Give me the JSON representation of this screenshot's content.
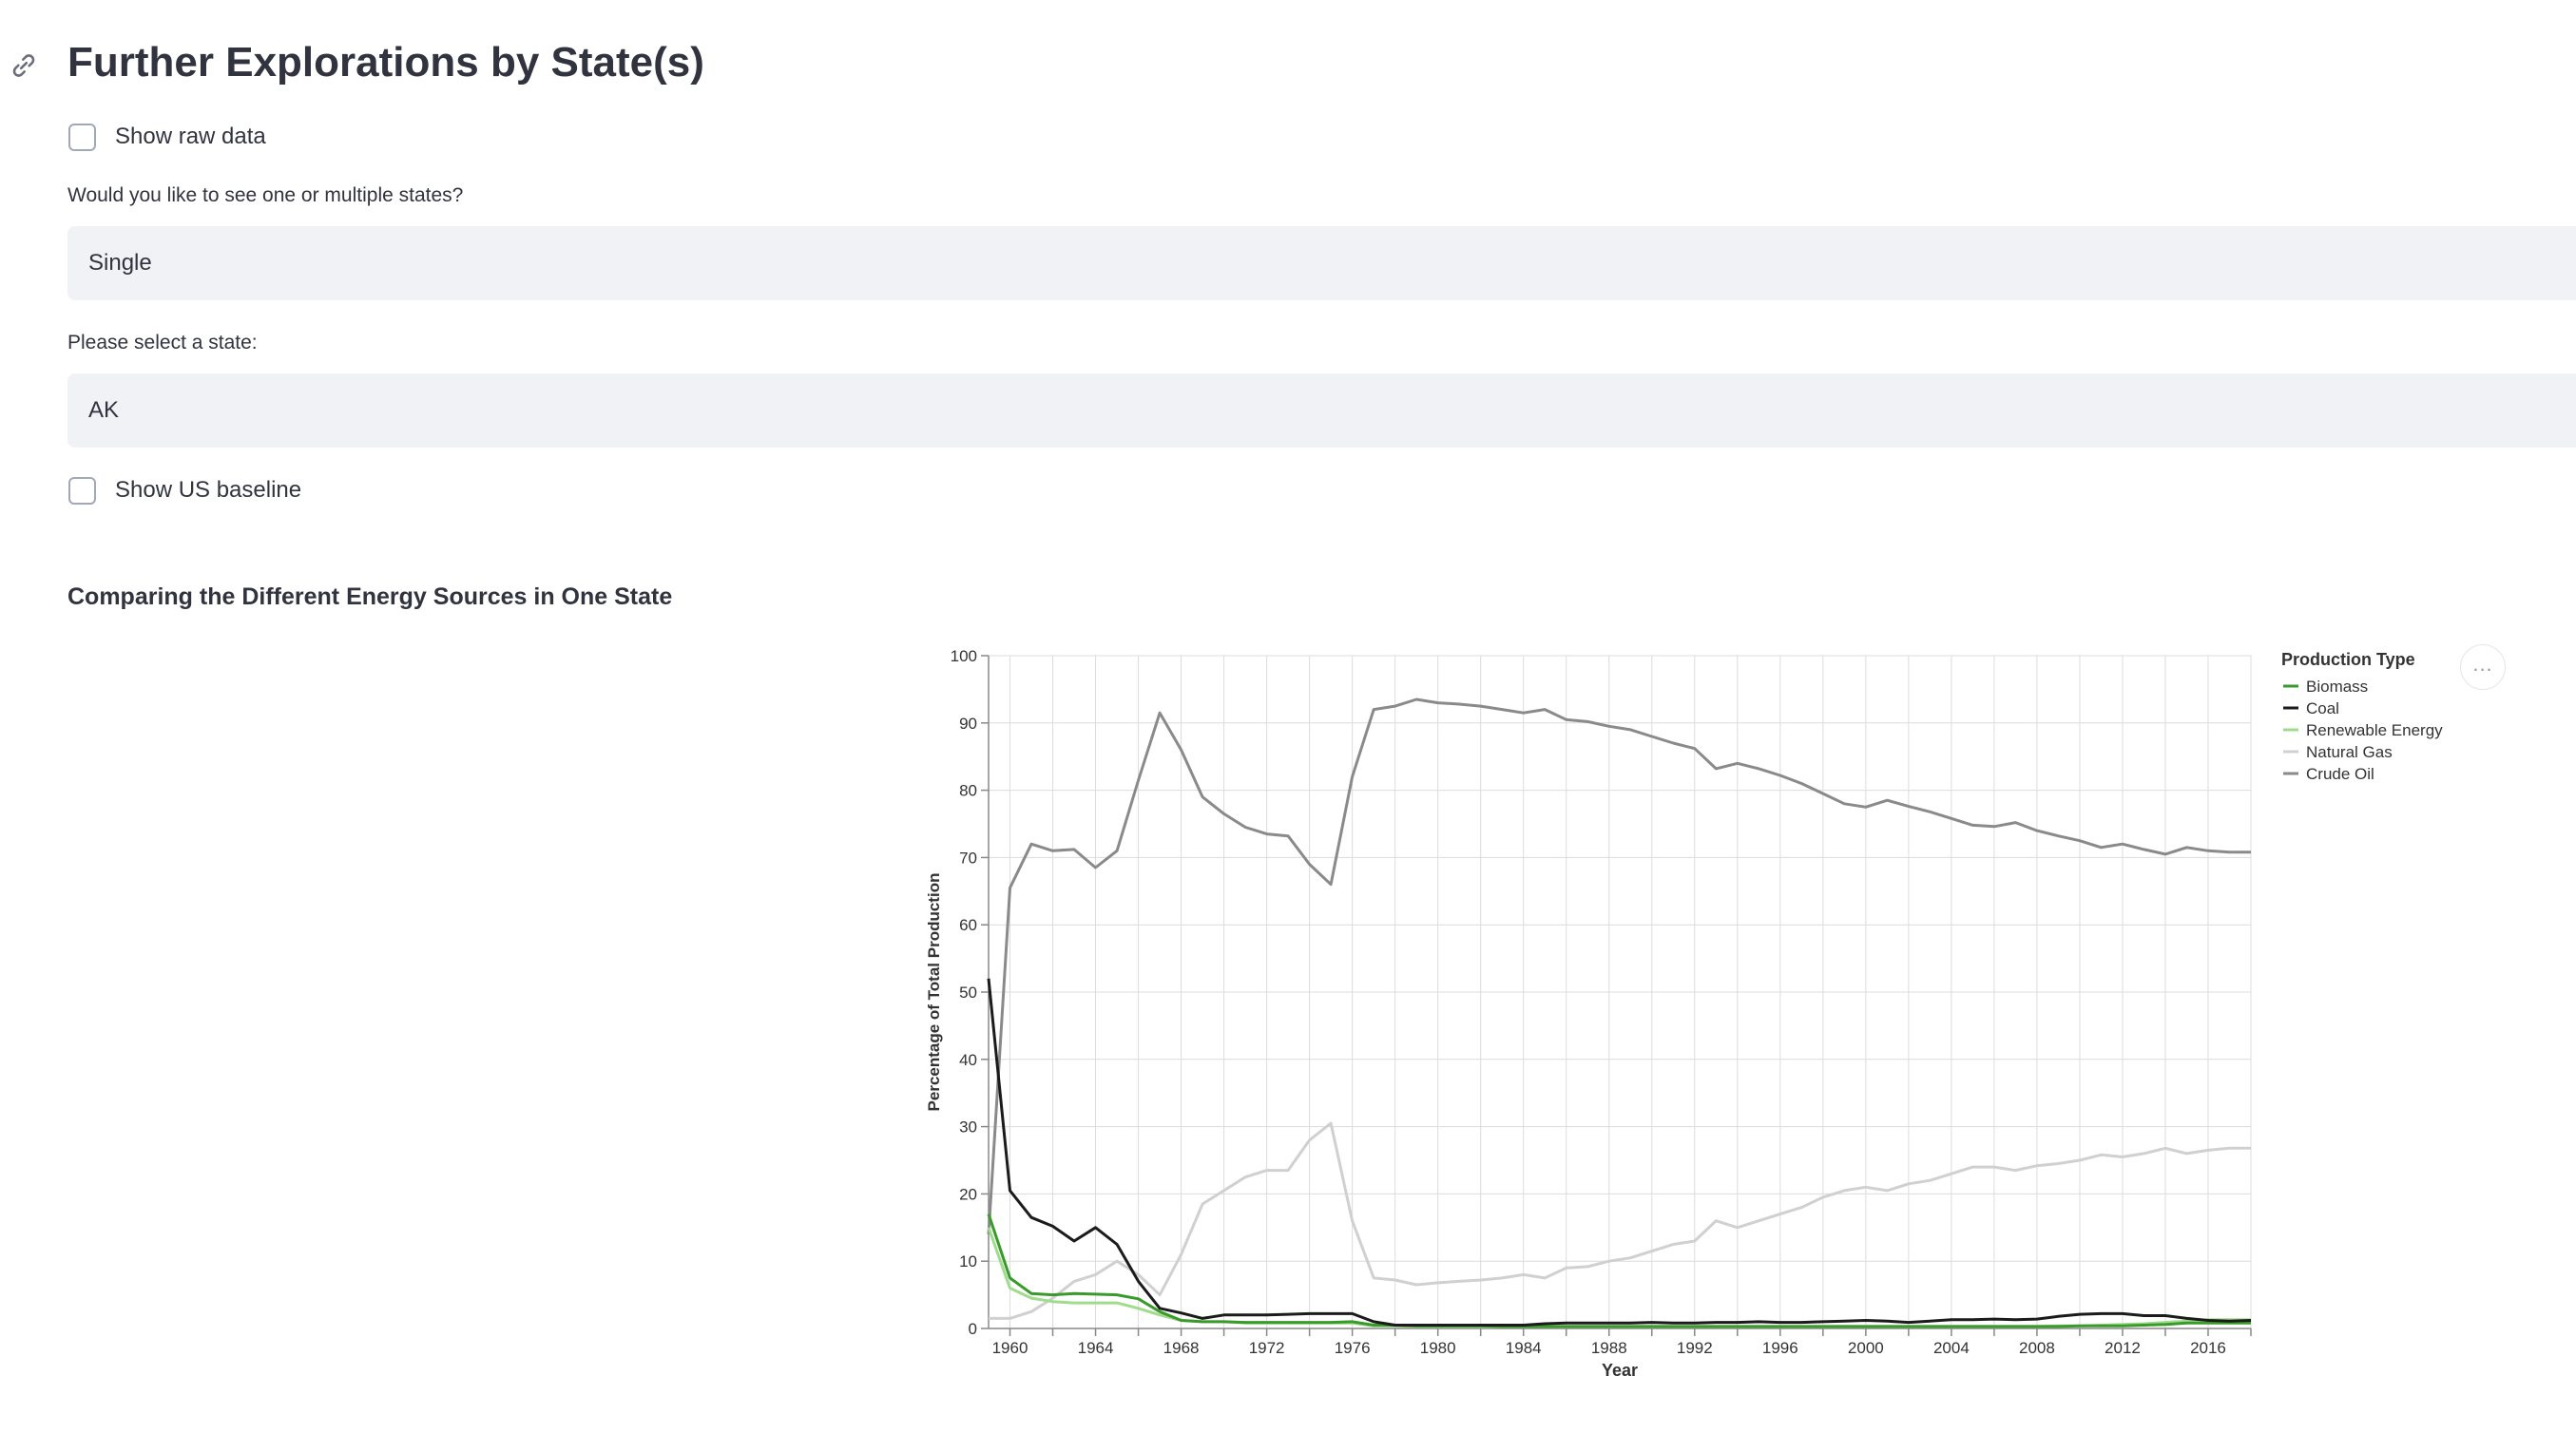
{
  "header": {
    "title": "Further Explorations by State(s)"
  },
  "controls": {
    "show_raw_data": {
      "label": "Show raw data",
      "checked": false
    },
    "mode_select": {
      "label": "Would you like to see one or multiple states?",
      "value": "Single"
    },
    "state_select": {
      "label": "Please select a state:",
      "value": "AK"
    },
    "show_us_baseline": {
      "label": "Show US baseline",
      "checked": false
    }
  },
  "chart_section": {
    "heading": "Comparing the Different Energy Sources in One State",
    "menu_label": "..."
  },
  "chart_data": {
    "type": "line",
    "xlabel": "Year",
    "ylabel": "Percentage of Total Production",
    "xlim": [
      1959,
      2018
    ],
    "ylim": [
      0,
      100
    ],
    "x_ticks": [
      1960,
      1964,
      1968,
      1972,
      1976,
      1980,
      1984,
      1988,
      1992,
      1996,
      2000,
      2004,
      2008,
      2012,
      2016
    ],
    "y_ticks": [
      0,
      10,
      20,
      30,
      40,
      50,
      60,
      70,
      80,
      90,
      100
    ],
    "grid": true,
    "legend": {
      "title": "Production Type",
      "position": "right"
    },
    "x": [
      1959,
      1960,
      1961,
      1962,
      1963,
      1964,
      1965,
      1966,
      1967,
      1968,
      1969,
      1970,
      1971,
      1972,
      1973,
      1974,
      1975,
      1976,
      1977,
      1978,
      1979,
      1980,
      1981,
      1982,
      1983,
      1984,
      1985,
      1986,
      1987,
      1988,
      1989,
      1990,
      1991,
      1992,
      1993,
      1994,
      1995,
      1996,
      1997,
      1998,
      1999,
      2000,
      2001,
      2002,
      2003,
      2004,
      2005,
      2006,
      2007,
      2008,
      2009,
      2010,
      2011,
      2012,
      2013,
      2014,
      2015,
      2016,
      2017,
      2018
    ],
    "series": [
      {
        "name": "Biomass",
        "color": "#3a9a2c",
        "values": [
          17,
          7.5,
          5.2,
          5,
          5.2,
          5.1,
          5,
          4.4,
          2.5,
          1.2,
          1,
          1,
          0.9,
          0.9,
          0.9,
          0.9,
          0.9,
          1,
          0.5,
          0.5,
          0.4,
          0.4,
          0.4,
          0.4,
          0.3,
          0.3,
          0.3,
          0.3,
          0.3,
          0.3,
          0.3,
          0.3,
          0.3,
          0.3,
          0.3,
          0.3,
          0.3,
          0.3,
          0.3,
          0.3,
          0.3,
          0.3,
          0.3,
          0.3,
          0.3,
          0.3,
          0.3,
          0.3,
          0.3,
          0.3,
          0.3,
          0.4,
          0.4,
          0.4,
          0.5,
          0.6,
          0.8,
          0.8,
          0.8,
          0.8
        ]
      },
      {
        "name": "Coal",
        "color": "#1b1b1b",
        "values": [
          52,
          20.5,
          16.5,
          15.2,
          13,
          15,
          12.5,
          7,
          3,
          2.3,
          1.5,
          2,
          2,
          2,
          2.1,
          2.2,
          2.2,
          2.2,
          1,
          0.5,
          0.5,
          0.5,
          0.5,
          0.5,
          0.5,
          0.5,
          0.7,
          0.8,
          0.8,
          0.8,
          0.8,
          0.9,
          0.8,
          0.8,
          0.9,
          0.9,
          1,
          0.9,
          0.9,
          1,
          1.1,
          1.2,
          1.1,
          0.9,
          1.1,
          1.3,
          1.3,
          1.4,
          1.3,
          1.4,
          1.8,
          2.1,
          2.2,
          2.2,
          1.9,
          1.9,
          1.5,
          1.2,
          1.1,
          1.2
        ]
      },
      {
        "name": "Renewable Energy",
        "color": "#9fdc8c",
        "values": [
          15,
          6,
          4.5,
          4,
          3.8,
          3.8,
          3.8,
          3,
          2,
          1.2,
          1,
          1,
          0.8,
          0.8,
          0.8,
          0.8,
          0.8,
          0.8,
          0.4,
          0.4,
          0.3,
          0.3,
          0.3,
          0.3,
          0.3,
          0.3,
          0.3,
          0.3,
          0.3,
          0.3,
          0.3,
          0.3,
          0.3,
          0.3,
          0.3,
          0.3,
          0.3,
          0.3,
          0.3,
          0.3,
          0.3,
          0.3,
          0.3,
          0.3,
          0.3,
          0.3,
          0.3,
          0.3,
          0.3,
          0.3,
          0.4,
          0.4,
          0.5,
          0.6,
          0.7,
          0.9,
          1.1,
          1.3,
          1.3,
          1.3
        ]
      },
      {
        "name": "Natural Gas",
        "color": "#d0d0d0",
        "values": [
          1.5,
          1.5,
          2.5,
          4.5,
          7,
          8,
          10,
          8,
          5,
          11,
          18.5,
          20.5,
          22.5,
          23.5,
          23.5,
          28,
          30.5,
          16,
          7.5,
          7.2,
          6.5,
          6.8,
          7,
          7.2,
          7.5,
          8,
          7.5,
          9,
          9.2,
          10,
          10.5,
          11.5,
          12.5,
          13,
          16,
          15,
          16,
          17,
          18,
          19.5,
          20.5,
          21,
          20.5,
          21.5,
          22,
          23,
          24,
          24,
          23.5,
          24.2,
          24.5,
          25,
          25.8,
          25.5,
          26,
          26.8,
          26,
          26.5,
          26.8,
          26.8
        ]
      },
      {
        "name": "Crude Oil",
        "color": "#8a8a8a",
        "values": [
          14,
          65.5,
          72,
          71,
          71.2,
          68.5,
          71,
          81.5,
          91.5,
          86,
          79,
          76.5,
          74.5,
          73.5,
          73.2,
          69,
          66,
          82,
          92,
          92.5,
          93.5,
          93,
          92.8,
          92.5,
          92,
          91.5,
          92,
          90.5,
          90.2,
          89.5,
          89,
          88,
          87,
          86.2,
          83.2,
          84,
          83.2,
          82.2,
          81,
          79.5,
          78,
          77.5,
          78.5,
          77.6,
          76.8,
          75.8,
          74.8,
          74.6,
          75.2,
          74,
          73.2,
          72.5,
          71.5,
          72,
          71.2,
          70.5,
          71.5,
          71,
          70.8,
          70.8
        ]
      }
    ]
  }
}
